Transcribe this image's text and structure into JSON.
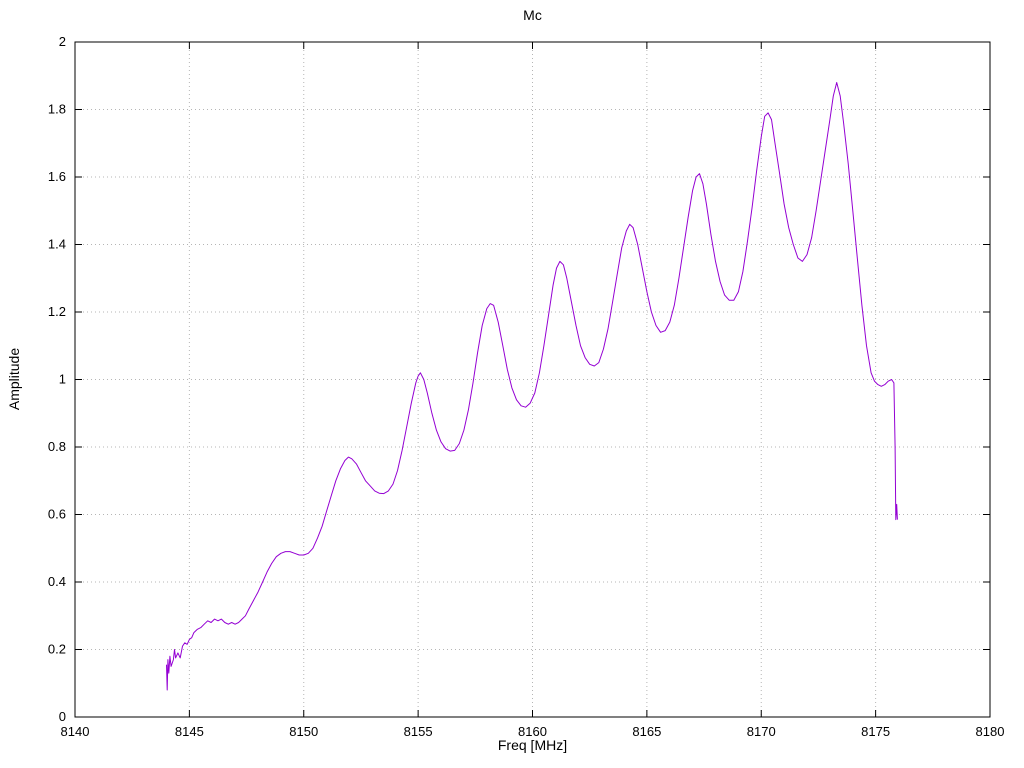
{
  "chart_data": {
    "type": "line",
    "title": "Mc",
    "xlabel": "Freq [MHz]",
    "ylabel": "Amplitude",
    "xlim": [
      8140,
      8180
    ],
    "ylim": [
      0,
      2
    ],
    "xticks": [
      8140,
      8145,
      8150,
      8155,
      8160,
      8165,
      8170,
      8175,
      8180
    ],
    "xtick_labels": [
      "8140",
      "8145",
      "8150",
      "8155",
      "8160",
      "8165",
      "8170",
      "8175",
      "8180"
    ],
    "yticks": [
      0,
      0.2,
      0.4,
      0.6,
      0.8,
      1,
      1.2,
      1.4,
      1.6,
      1.8,
      2
    ],
    "ytick_labels": [
      "0",
      "0.2",
      "0.4",
      "0.6",
      "0.8",
      "1",
      "1.2",
      "1.4",
      "1.6",
      "1.8",
      "2"
    ],
    "grid": "dotted",
    "legend": "none",
    "series": [
      {
        "name": "Mc",
        "color": "#9400d3",
        "points": [
          [
            8144.0,
            0.155
          ],
          [
            8144.03,
            0.08
          ],
          [
            8144.06,
            0.17
          ],
          [
            8144.1,
            0.13
          ],
          [
            8144.15,
            0.18
          ],
          [
            8144.2,
            0.15
          ],
          [
            8144.3,
            0.17
          ],
          [
            8144.35,
            0.2
          ],
          [
            8144.4,
            0.175
          ],
          [
            8144.5,
            0.19
          ],
          [
            8144.6,
            0.175
          ],
          [
            8144.7,
            0.21
          ],
          [
            8144.8,
            0.22
          ],
          [
            8144.9,
            0.215
          ],
          [
            8145.0,
            0.23
          ],
          [
            8145.1,
            0.235
          ],
          [
            8145.2,
            0.25
          ],
          [
            8145.35,
            0.26
          ],
          [
            8145.5,
            0.265
          ],
          [
            8145.65,
            0.275
          ],
          [
            8145.8,
            0.285
          ],
          [
            8145.95,
            0.28
          ],
          [
            8146.1,
            0.29
          ],
          [
            8146.25,
            0.285
          ],
          [
            8146.4,
            0.29
          ],
          [
            8146.55,
            0.28
          ],
          [
            8146.7,
            0.275
          ],
          [
            8146.85,
            0.28
          ],
          [
            8147.0,
            0.275
          ],
          [
            8147.15,
            0.28
          ],
          [
            8147.3,
            0.29
          ],
          [
            8147.45,
            0.3
          ],
          [
            8147.6,
            0.32
          ],
          [
            8147.8,
            0.345
          ],
          [
            8148.0,
            0.37
          ],
          [
            8148.2,
            0.4
          ],
          [
            8148.4,
            0.43
          ],
          [
            8148.6,
            0.455
          ],
          [
            8148.8,
            0.475
          ],
          [
            8149.0,
            0.485
          ],
          [
            8149.2,
            0.49
          ],
          [
            8149.4,
            0.49
          ],
          [
            8149.6,
            0.485
          ],
          [
            8149.8,
            0.48
          ],
          [
            8150.0,
            0.48
          ],
          [
            8150.2,
            0.485
          ],
          [
            8150.4,
            0.5
          ],
          [
            8150.6,
            0.53
          ],
          [
            8150.8,
            0.565
          ],
          [
            8151.0,
            0.61
          ],
          [
            8151.2,
            0.655
          ],
          [
            8151.4,
            0.7
          ],
          [
            8151.6,
            0.735
          ],
          [
            8151.8,
            0.76
          ],
          [
            8151.95,
            0.77
          ],
          [
            8152.1,
            0.765
          ],
          [
            8152.3,
            0.75
          ],
          [
            8152.5,
            0.725
          ],
          [
            8152.7,
            0.7
          ],
          [
            8152.9,
            0.685
          ],
          [
            8153.1,
            0.67
          ],
          [
            8153.3,
            0.663
          ],
          [
            8153.5,
            0.662
          ],
          [
            8153.7,
            0.67
          ],
          [
            8153.9,
            0.69
          ],
          [
            8154.1,
            0.73
          ],
          [
            8154.3,
            0.79
          ],
          [
            8154.5,
            0.86
          ],
          [
            8154.7,
            0.93
          ],
          [
            8154.9,
            0.99
          ],
          [
            8155.0,
            1.01
          ],
          [
            8155.1,
            1.02
          ],
          [
            8155.25,
            1.0
          ],
          [
            8155.4,
            0.96
          ],
          [
            8155.6,
            0.9
          ],
          [
            8155.8,
            0.85
          ],
          [
            8156.0,
            0.815
          ],
          [
            8156.2,
            0.795
          ],
          [
            8156.4,
            0.788
          ],
          [
            8156.6,
            0.79
          ],
          [
            8156.8,
            0.81
          ],
          [
            8157.0,
            0.85
          ],
          [
            8157.2,
            0.91
          ],
          [
            8157.4,
            0.99
          ],
          [
            8157.6,
            1.08
          ],
          [
            8157.8,
            1.16
          ],
          [
            8158.0,
            1.21
          ],
          [
            8158.15,
            1.225
          ],
          [
            8158.3,
            1.22
          ],
          [
            8158.5,
            1.17
          ],
          [
            8158.7,
            1.1
          ],
          [
            8158.9,
            1.03
          ],
          [
            8159.1,
            0.975
          ],
          [
            8159.3,
            0.94
          ],
          [
            8159.5,
            0.922
          ],
          [
            8159.7,
            0.918
          ],
          [
            8159.9,
            0.93
          ],
          [
            8160.1,
            0.96
          ],
          [
            8160.3,
            1.02
          ],
          [
            8160.5,
            1.1
          ],
          [
            8160.7,
            1.19
          ],
          [
            8160.9,
            1.28
          ],
          [
            8161.05,
            1.33
          ],
          [
            8161.2,
            1.35
          ],
          [
            8161.35,
            1.34
          ],
          [
            8161.5,
            1.3
          ],
          [
            8161.7,
            1.23
          ],
          [
            8161.9,
            1.16
          ],
          [
            8162.1,
            1.1
          ],
          [
            8162.3,
            1.065
          ],
          [
            8162.5,
            1.045
          ],
          [
            8162.7,
            1.04
          ],
          [
            8162.9,
            1.05
          ],
          [
            8163.1,
            1.09
          ],
          [
            8163.3,
            1.15
          ],
          [
            8163.5,
            1.23
          ],
          [
            8163.7,
            1.31
          ],
          [
            8163.9,
            1.39
          ],
          [
            8164.1,
            1.44
          ],
          [
            8164.25,
            1.46
          ],
          [
            8164.4,
            1.45
          ],
          [
            8164.6,
            1.4
          ],
          [
            8164.8,
            1.33
          ],
          [
            8165.0,
            1.26
          ],
          [
            8165.2,
            1.2
          ],
          [
            8165.4,
            1.16
          ],
          [
            8165.6,
            1.14
          ],
          [
            8165.8,
            1.145
          ],
          [
            8166.0,
            1.17
          ],
          [
            8166.2,
            1.22
          ],
          [
            8166.4,
            1.3
          ],
          [
            8166.6,
            1.39
          ],
          [
            8166.8,
            1.48
          ],
          [
            8167.0,
            1.56
          ],
          [
            8167.15,
            1.6
          ],
          [
            8167.3,
            1.61
          ],
          [
            8167.45,
            1.58
          ],
          [
            8167.6,
            1.52
          ],
          [
            8167.8,
            1.43
          ],
          [
            8168.0,
            1.35
          ],
          [
            8168.2,
            1.29
          ],
          [
            8168.4,
            1.25
          ],
          [
            8168.6,
            1.235
          ],
          [
            8168.8,
            1.235
          ],
          [
            8169.0,
            1.26
          ],
          [
            8169.2,
            1.32
          ],
          [
            8169.4,
            1.41
          ],
          [
            8169.6,
            1.51
          ],
          [
            8169.8,
            1.62
          ],
          [
            8170.0,
            1.72
          ],
          [
            8170.15,
            1.78
          ],
          [
            8170.3,
            1.79
          ],
          [
            8170.45,
            1.77
          ],
          [
            8170.6,
            1.7
          ],
          [
            8170.8,
            1.61
          ],
          [
            8171.0,
            1.52
          ],
          [
            8171.2,
            1.45
          ],
          [
            8171.4,
            1.4
          ],
          [
            8171.6,
            1.36
          ],
          [
            8171.8,
            1.35
          ],
          [
            8172.0,
            1.37
          ],
          [
            8172.2,
            1.42
          ],
          [
            8172.4,
            1.5
          ],
          [
            8172.6,
            1.59
          ],
          [
            8172.8,
            1.68
          ],
          [
            8173.0,
            1.77
          ],
          [
            8173.15,
            1.84
          ],
          [
            8173.3,
            1.88
          ],
          [
            8173.45,
            1.84
          ],
          [
            8173.6,
            1.76
          ],
          [
            8173.8,
            1.64
          ],
          [
            8174.0,
            1.5
          ],
          [
            8174.2,
            1.36
          ],
          [
            8174.4,
            1.22
          ],
          [
            8174.6,
            1.1
          ],
          [
            8174.8,
            1.02
          ],
          [
            8174.95,
            0.995
          ],
          [
            8175.1,
            0.985
          ],
          [
            8175.25,
            0.98
          ],
          [
            8175.4,
            0.985
          ],
          [
            8175.55,
            0.995
          ],
          [
            8175.7,
            1.0
          ],
          [
            8175.8,
            0.99
          ],
          [
            8175.85,
            0.8
          ],
          [
            8175.88,
            0.585
          ],
          [
            8175.92,
            0.63
          ],
          [
            8175.95,
            0.585
          ]
        ]
      }
    ]
  },
  "colors": {
    "background": "#ffffff",
    "grid": "#b5b5b5",
    "axis": "#000000",
    "line": "#9400d3"
  }
}
